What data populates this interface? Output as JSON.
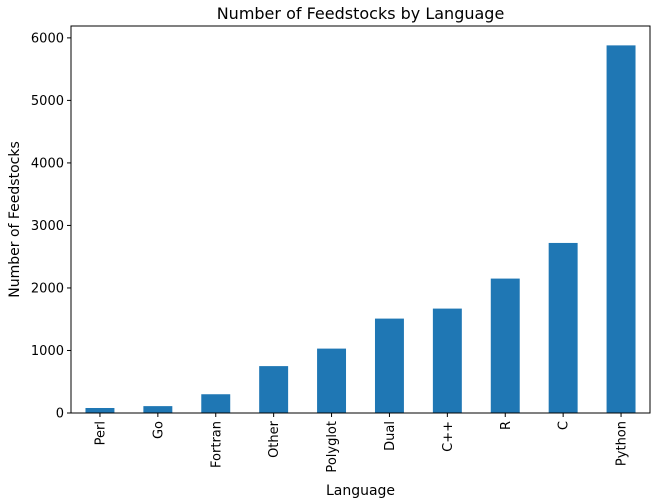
{
  "chart_data": {
    "type": "bar",
    "title": "Number of Feedstocks by Language",
    "xlabel": "Language",
    "ylabel": "Number of Feedstocks",
    "categories": [
      "Perl",
      "Go",
      "Fortran",
      "Other",
      "Polyglot",
      "Dual",
      "C++",
      "R",
      "C",
      "Python"
    ],
    "values": [
      80,
      110,
      300,
      750,
      1030,
      1510,
      1670,
      2150,
      2720,
      5880
    ],
    "ylim": [
      0,
      6190
    ],
    "yticks": [
      0,
      1000,
      2000,
      3000,
      4000,
      5000,
      6000
    ],
    "grid": false,
    "legend": "none",
    "bar_color": "#1f77b4"
  }
}
